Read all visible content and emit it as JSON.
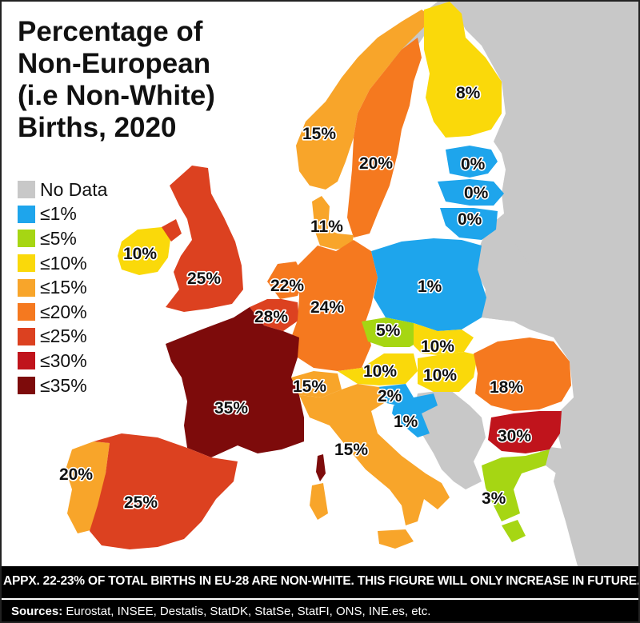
{
  "title": {
    "lines": [
      "Percentage of",
      "Non-European",
      "(i.e Non-White)",
      "Births, 2020"
    ]
  },
  "legend": [
    {
      "label": "No Data",
      "color": "#c8c8c8"
    },
    {
      "label": "≤1%",
      "color": "#1ea5ec"
    },
    {
      "label": "≤5%",
      "color": "#a6d613"
    },
    {
      "label": "≤10%",
      "color": "#fad90a"
    },
    {
      "label": "≤15%",
      "color": "#f8a52a"
    },
    {
      "label": "≤20%",
      "color": "#f5791f"
    },
    {
      "label": "≤25%",
      "color": "#dc4120"
    },
    {
      "label": "≤30%",
      "color": "#c0141c"
    },
    {
      "label": "≤35%",
      "color": "#7d0b0b"
    }
  ],
  "countries": [
    {
      "name": "Finland",
      "label": "8%"
    },
    {
      "name": "Norway",
      "label": "15%"
    },
    {
      "name": "Sweden",
      "label": "20%"
    },
    {
      "name": "Estonia",
      "label": "0%"
    },
    {
      "name": "Latvia",
      "label": "0%"
    },
    {
      "name": "Lithuania",
      "label": "0%"
    },
    {
      "name": "Denmark",
      "label": "11%"
    },
    {
      "name": "Ireland",
      "label": "10%"
    },
    {
      "name": "United Kingdom",
      "label": "25%"
    },
    {
      "name": "Netherlands",
      "label": "22%"
    },
    {
      "name": "Belgium",
      "label": "28%"
    },
    {
      "name": "Germany",
      "label": "24%"
    },
    {
      "name": "Poland",
      "label": "1%"
    },
    {
      "name": "Czechia",
      "label": "5%"
    },
    {
      "name": "Slovakia",
      "label": "10%"
    },
    {
      "name": "Austria",
      "label": "10%"
    },
    {
      "name": "Hungary",
      "label": "10%"
    },
    {
      "name": "Romania",
      "label": "18%"
    },
    {
      "name": "Switzerland",
      "label": "15%"
    },
    {
      "name": "France",
      "label": "35%"
    },
    {
      "name": "Slovenia",
      "label": "2%"
    },
    {
      "name": "Croatia",
      "label": "1%"
    },
    {
      "name": "Italy",
      "label": "15%"
    },
    {
      "name": "Bulgaria",
      "label": "30%"
    },
    {
      "name": "Portugal",
      "label": "20%"
    },
    {
      "name": "Spain",
      "label": "25%"
    },
    {
      "name": "Greece",
      "label": "3%"
    }
  ],
  "footer": {
    "note": "APPX. 22-23% OF TOTAL BIRTHS IN EU-28 ARE NON-WHITE. THIS FIGURE WILL ONLY INCREASE IN FUTURE.",
    "sources_label": "Sources:",
    "sources_text": " Eurostat, INSEE, Destatis, StatDK, StatSe, StatFI, ONS, INE.es, etc."
  }
}
